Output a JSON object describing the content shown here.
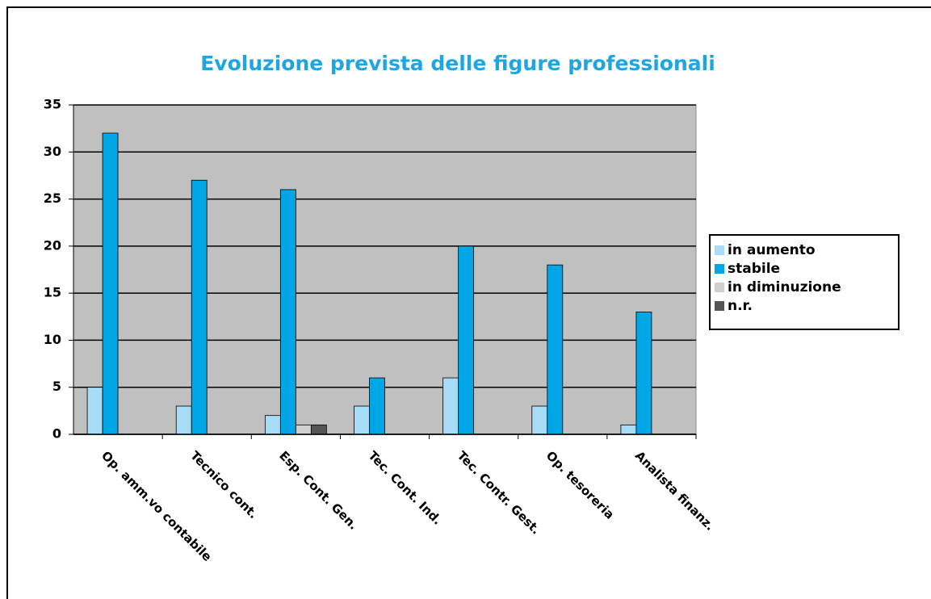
{
  "chart_data": {
    "type": "bar",
    "title": "Evoluzione prevista delle figure professionali",
    "categories": [
      "Op. amm.vo contabile",
      "Tecnico cont.",
      "Esp. Cont. Gen.",
      "Tec. Cont. Ind.",
      "Tec. Contr. Gest.",
      "Op. tesoreria",
      "Analista finanz."
    ],
    "series": [
      {
        "name": "in aumento",
        "color": "#a6dcf5",
        "values": [
          5,
          3,
          2,
          3,
          6,
          3,
          1
        ]
      },
      {
        "name": "stabile",
        "color": "#00a6e6",
        "values": [
          32,
          27,
          26,
          6,
          20,
          18,
          13
        ]
      },
      {
        "name": "in diminuzione",
        "color": "#cfcfcf",
        "values": [
          0,
          0,
          1,
          0,
          0,
          0,
          0
        ]
      },
      {
        "name": "n.r.",
        "color": "#555555",
        "values": [
          0,
          0,
          1,
          0,
          0,
          0,
          0
        ]
      }
    ],
    "ylim": [
      0,
      35
    ],
    "yticks": [
      0,
      5,
      10,
      15,
      20,
      25,
      30,
      35
    ],
    "grid": true,
    "legend": "right"
  }
}
